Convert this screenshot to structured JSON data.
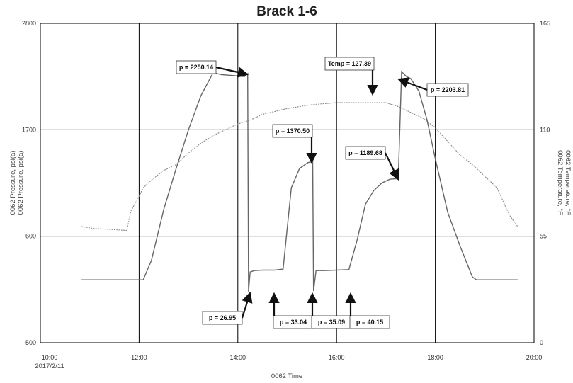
{
  "chart_data": {
    "type": "line",
    "title": "Brack 1-6",
    "xlabel": "0062 Time",
    "x_start_date": "2017/2/11",
    "ylabel_left": [
      "0062 Pressure, psi(a)",
      "0062 Pressure, psi(a)"
    ],
    "ylabel_right": [
      "0062 Temperature, °F",
      "0062 Temperature, °F"
    ],
    "x_ticks": [
      "10:00",
      "12:00",
      "14:00",
      "16:00",
      "18:00",
      "20:00"
    ],
    "x_range": [
      "10:00",
      "20:00"
    ],
    "ylim_left": [
      -500,
      2800
    ],
    "yticks_left": [
      -500,
      600,
      1700,
      2800
    ],
    "ylim_right": [
      0,
      165
    ],
    "yticks_right": [
      0,
      55,
      110,
      165
    ],
    "grid": true,
    "series": [
      {
        "axis": "left",
        "color": "#666666",
        "x": [
          "10:50",
          "12:05",
          "12:15",
          "12:30",
          "12:45",
          "13:00",
          "13:15",
          "13:30",
          "13:40",
          "13:55",
          "14:08",
          "14:12",
          "14:13",
          "14:15",
          "14:20",
          "14:30",
          "14:45",
          "14:55",
          "15:05",
          "15:15",
          "15:25",
          "15:31",
          "15:32",
          "15:35",
          "15:45",
          "16:00",
          "16:15",
          "16:25",
          "16:35",
          "16:45",
          "16:55",
          "17:05",
          "17:15",
          "17:19",
          "17:25",
          "17:30",
          "17:40",
          "17:50",
          "18:00",
          "18:15",
          "18:30",
          "18:45",
          "18:50",
          "19:40"
        ],
        "y": [
          150,
          150,
          350,
          880,
          1300,
          1700,
          2050,
          2290,
          2270,
          2260,
          2250,
          2280,
          26.95,
          230,
          245,
          250,
          250,
          260,
          1100,
          1300,
          1360,
          1370.5,
          35.09,
          245,
          245,
          250,
          255,
          560,
          930,
          1070,
          1150,
          1189.68,
          1195,
          2300,
          2250,
          2230,
          2100,
          1800,
          1400,
          850,
          500,
          180,
          150,
          150
        ]
      },
      {
        "axis": "right",
        "color": "#888888",
        "x": [
          "10:50",
          "11:05",
          "11:45",
          "11:50",
          "11:58",
          "12:05",
          "12:15",
          "12:30",
          "12:45",
          "13:00",
          "13:15",
          "13:30",
          "13:45",
          "14:00",
          "14:15",
          "14:30",
          "15:00",
          "15:30",
          "16:00",
          "16:30",
          "17:00",
          "17:15",
          "17:30",
          "17:45",
          "18:00",
          "18:15",
          "18:30",
          "18:45",
          "19:00",
          "19:15",
          "19:30",
          "19:40"
        ],
        "y": [
          60,
          59,
          58,
          68,
          74,
          80,
          84,
          89,
          92,
          98,
          103,
          107,
          110,
          113,
          115,
          118,
          121,
          123,
          124,
          124,
          124,
          122,
          119,
          116,
          111,
          104,
          97,
          92,
          86,
          80,
          66,
          60
        ]
      }
    ],
    "annotations": [
      {
        "label": "p = 2250.14"
      },
      {
        "label": "Temp = 127.39"
      },
      {
        "label": "p = 2203.81"
      },
      {
        "label": "p = 1370.50"
      },
      {
        "label": "p = 1189.68"
      },
      {
        "label": "p = 26.95"
      },
      {
        "label": "p = 33.04"
      },
      {
        "label": "p = 35.09"
      },
      {
        "label": "p = 40.15"
      }
    ]
  }
}
